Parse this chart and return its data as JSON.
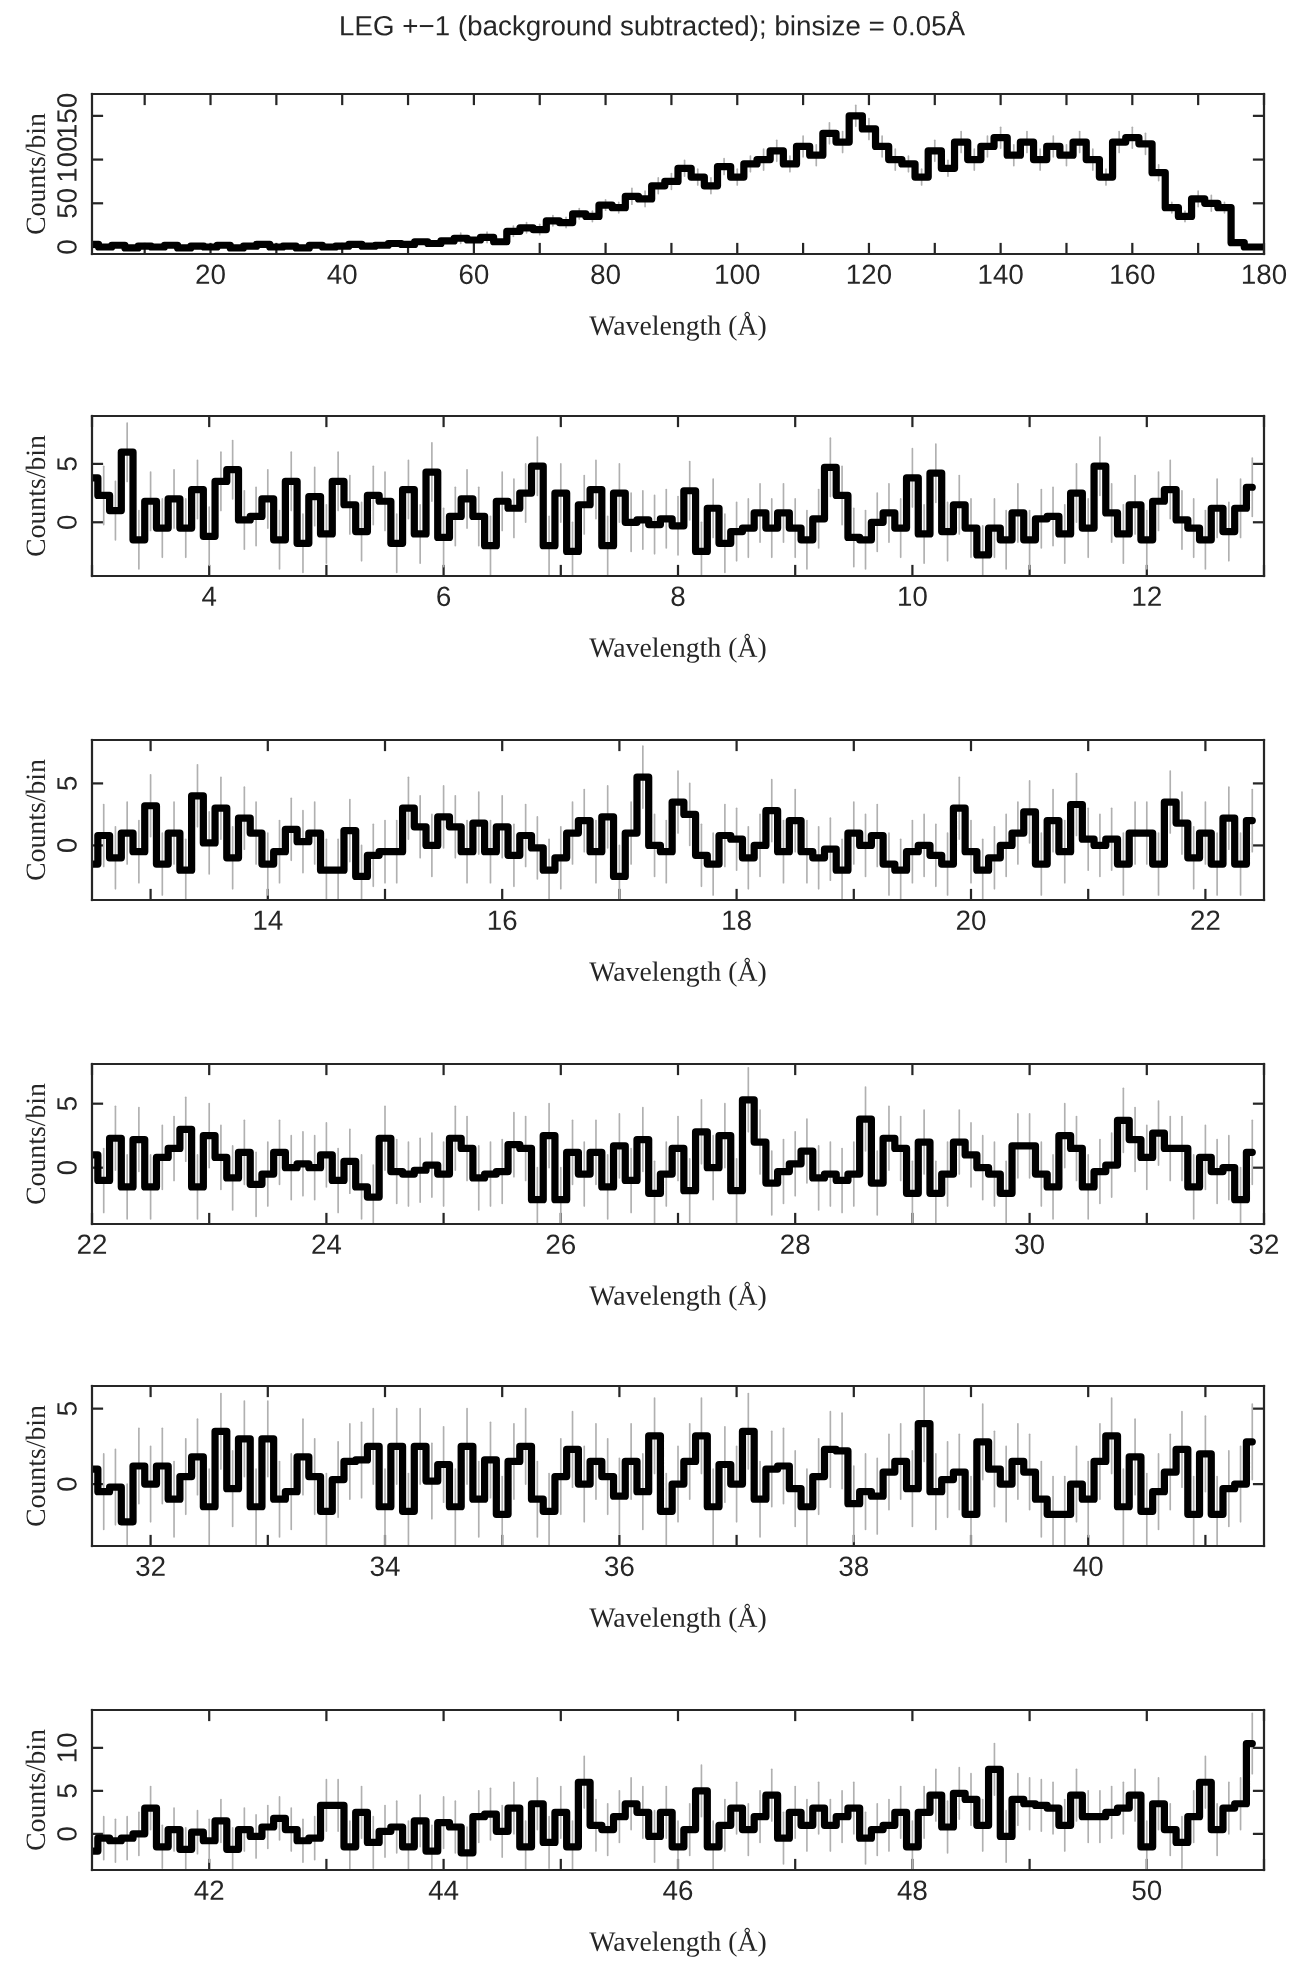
{
  "chart_data": [
    {
      "type": "step",
      "title": "LEG +−1 (background subtracted); binsize = 0.05Å",
      "xlabel": "Wavelength (Å)",
      "ylabel": "Counts/bin",
      "xlim": [
        2,
        180
      ],
      "ylim": [
        -8,
        175
      ],
      "yticks": [
        0,
        50,
        100,
        150
      ],
      "xticks": [
        {
          "value": 10,
          "label": null
        },
        20,
        {
          "value": 30,
          "label": null
        },
        40,
        {
          "value": 50,
          "label": null
        },
        60,
        {
          "value": 70,
          "label": null
        },
        80,
        {
          "value": 90,
          "label": null
        },
        100,
        {
          "value": 110,
          "label": null
        },
        120,
        {
          "value": 130,
          "label": null
        },
        140,
        {
          "value": 150,
          "label": null
        },
        160,
        {
          "value": 170,
          "label": null
        },
        180
      ],
      "series": [
        {
          "color": "#000000",
          "x": [
            2,
            4,
            6,
            8,
            10,
            12,
            14,
            16,
            18,
            20,
            22,
            24,
            26,
            28,
            30,
            32,
            34,
            36,
            38,
            40,
            42,
            44,
            46,
            48,
            50,
            52,
            54,
            56,
            58,
            60,
            62,
            64,
            66,
            68,
            70,
            72,
            74,
            76,
            78,
            80,
            82,
            84,
            86,
            88,
            90,
            92,
            94,
            96,
            98,
            100,
            102,
            104,
            106,
            108,
            110,
            112,
            114,
            116,
            118,
            120,
            122,
            124,
            126,
            128,
            130,
            132,
            134,
            136,
            138,
            140,
            142,
            144,
            146,
            148,
            150,
            152,
            154,
            156,
            158,
            160,
            162,
            164,
            166,
            168,
            170,
            172,
            174,
            176,
            178,
            180
          ],
          "values": [
            3,
            0,
            2,
            -1,
            1,
            0,
            2,
            -1,
            1,
            0,
            2,
            -1,
            1,
            3,
            0,
            1,
            -1,
            2,
            0,
            1,
            3,
            1,
            2,
            4,
            3,
            6,
            4,
            7,
            10,
            8,
            11,
            6,
            18,
            22,
            20,
            30,
            28,
            38,
            35,
            48,
            45,
            58,
            55,
            70,
            75,
            90,
            80,
            70,
            92,
            80,
            95,
            100,
            110,
            95,
            115,
            105,
            130,
            120,
            150,
            135,
            115,
            100,
            95,
            80,
            110,
            90,
            120,
            100,
            115,
            125,
            105,
            120,
            100,
            115,
            105,
            120,
            100,
            80,
            120,
            125,
            118,
            85,
            45,
            35,
            55,
            50,
            45,
            5,
            0,
            0
          ],
          "errors": [
            null,
            null,
            null,
            null,
            null,
            null,
            null,
            null,
            null,
            null,
            null,
            null,
            null,
            null,
            null,
            null,
            null,
            null,
            null,
            null,
            null,
            null,
            null,
            null,
            null,
            null,
            null,
            null,
            6,
            null,
            6,
            null,
            6,
            6,
            6,
            6,
            6,
            6,
            6,
            6,
            6,
            9,
            9,
            9,
            9,
            9,
            9,
            9,
            9,
            9,
            9,
            12,
            12,
            9,
            12,
            12,
            12,
            12,
            12,
            12,
            12,
            12,
            9,
            9,
            12,
            9,
            12,
            12,
            12,
            12,
            12,
            12,
            12,
            12,
            12,
            12,
            12,
            9,
            12,
            12,
            12,
            9,
            6,
            6,
            9,
            9,
            6,
            null,
            null,
            null
          ]
        }
      ]
    },
    {
      "type": "step",
      "xlabel": "Wavelength (Å)",
      "ylabel": "Counts/bin",
      "xlim": [
        3,
        13
      ],
      "ylim": [
        -4.6,
        9.1
      ],
      "yticks": [
        0,
        5
      ],
      "xticks": [
        {
          "value": 3,
          "label": null
        },
        4,
        {
          "value": 5,
          "label": null
        },
        6,
        {
          "value": 7,
          "label": null
        },
        8,
        {
          "value": 9,
          "label": null
        },
        10,
        {
          "value": 11,
          "label": null
        },
        12,
        {
          "value": 13,
          "label": null
        }
      ],
      "series": [
        {
          "color": "#000000",
          "x": [
            3.0,
            3.1,
            3.2,
            3.3,
            3.4,
            3.5,
            3.6,
            3.7,
            3.8,
            3.9,
            4.0,
            4.1,
            4.2,
            4.3,
            4.4,
            4.5,
            4.6,
            4.7,
            4.8,
            4.9,
            5.0,
            5.1,
            5.2,
            5.3,
            5.4,
            5.5,
            5.6,
            5.7,
            5.8,
            5.9,
            6.0,
            6.1,
            6.2,
            6.3,
            6.4,
            6.5,
            6.6,
            6.7,
            6.8,
            6.9,
            7.0,
            7.1,
            7.2,
            7.3,
            7.4,
            7.5,
            7.6,
            7.7,
            7.8,
            7.9,
            8.0,
            8.1,
            8.2,
            8.3,
            8.4,
            8.5,
            8.6,
            8.7,
            8.8,
            8.9,
            9.0,
            9.1,
            9.2,
            9.3,
            9.4,
            9.5,
            9.6,
            9.7,
            9.8,
            9.9,
            10.0,
            10.1,
            10.2,
            10.3,
            10.4,
            10.5,
            10.6,
            10.7,
            10.8,
            10.9,
            11.0,
            11.1,
            11.2,
            11.3,
            11.4,
            11.5,
            11.6,
            11.7,
            11.8,
            11.9,
            12.0,
            12.1,
            12.2,
            12.3,
            12.4,
            12.5,
            12.6,
            12.7,
            12.8,
            12.9
          ],
          "values": [
            3.8,
            2.3,
            1.0,
            6.0,
            -1.5,
            1.8,
            -0.5,
            2.0,
            -0.5,
            2.8,
            -1.2,
            3.5,
            4.5,
            0.2,
            0.5,
            2.0,
            -1.5,
            3.5,
            -1.8,
            2.2,
            -1.0,
            3.5,
            1.5,
            -0.8,
            2.3,
            1.8,
            -1.8,
            2.8,
            -1.0,
            4.3,
            -1.3,
            0.5,
            2.0,
            0.5,
            -2.0,
            1.8,
            1.2,
            2.5,
            4.8,
            -2.0,
            2.5,
            -2.5,
            1.5,
            2.8,
            -2.0,
            2.5,
            0.0,
            0.2,
            -0.2,
            0.3,
            -0.3,
            2.7,
            -2.5,
            1.2,
            -1.8,
            -0.8,
            -0.5,
            0.8,
            -0.5,
            0.8,
            -0.5,
            -1.5,
            0.3,
            4.7,
            2.3,
            -1.3,
            -1.5,
            0.0,
            0.8,
            -0.5,
            3.8,
            -1.0,
            4.2,
            -0.8,
            1.5,
            -0.5,
            -2.8,
            -0.5,
            -1.5,
            0.8,
            -1.5,
            0.3,
            0.5,
            -1.0,
            2.5,
            -0.5,
            4.8,
            0.8,
            -1.0,
            1.5,
            -1.5,
            1.8,
            2.8,
            0.2,
            -0.5,
            -1.5,
            1.2,
            -0.8,
            1.2,
            3.0
          ],
          "errors": [
            2.5,
            2.5,
            2.5,
            2.5,
            2.5,
            2.5,
            2.5,
            2.5,
            2.5,
            2.5,
            2.5,
            2.5,
            2.5,
            2.5,
            2.5,
            2.5,
            2.5,
            2.5,
            2.5,
            2.5,
            2.5,
            2.5,
            2.5,
            2.5,
            2.5,
            2.5,
            2.5,
            2.5,
            2.5,
            2.5,
            2.5,
            2.5,
            2.5,
            2.5,
            2.5,
            2.5,
            2.5,
            2.5,
            2.5,
            2.5,
            2.5,
            2.5,
            2.5,
            2.5,
            2.5,
            2.5,
            2.5,
            2.5,
            2.5,
            2.5,
            2.5,
            2.5,
            2.5,
            2.5,
            2.5,
            2.5,
            2.5,
            2.5,
            2.5,
            2.5,
            2.5,
            2.5,
            2.5,
            2.5,
            2.5,
            2.5,
            2.5,
            2.5,
            2.5,
            2.5,
            2.5,
            2.5,
            2.5,
            2.5,
            2.5,
            2.5,
            2.5,
            2.5,
            2.5,
            2.5,
            2.5,
            2.5,
            2.5,
            2.5,
            2.5,
            2.5,
            2.5,
            2.5,
            2.5,
            2.5,
            2.5,
            2.5,
            2.5,
            2.5,
            2.5,
            2.5,
            2.5,
            2.5,
            2.5,
            2.5
          ]
        }
      ]
    },
    {
      "type": "step",
      "xlabel": "Wavelength (Å)",
      "ylabel": "Counts/bin",
      "xlim": [
        12.5,
        22.5
      ],
      "ylim": [
        -4.4,
        8.5
      ],
      "yticks": [
        0,
        5
      ],
      "xticks": [
        {
          "value": 13,
          "label": null
        },
        14,
        {
          "value": 15,
          "label": null
        },
        16,
        {
          "value": 17,
          "label": null
        },
        18,
        {
          "value": 19,
          "label": null
        },
        20,
        {
          "value": 21,
          "label": null
        },
        22
      ],
      "series": [
        {
          "color": "#000000",
          "x": [
            12.5,
            12.6,
            12.7,
            12.8,
            12.9,
            13.0,
            13.1,
            13.2,
            13.3,
            13.4,
            13.5,
            13.6,
            13.7,
            13.8,
            13.9,
            14.0,
            14.1,
            14.2,
            14.3,
            14.4,
            14.5,
            14.6,
            14.7,
            14.8,
            14.9,
            15.0,
            15.1,
            15.2,
            15.3,
            15.4,
            15.5,
            15.6,
            15.7,
            15.8,
            15.9,
            16.0,
            16.1,
            16.2,
            16.3,
            16.4,
            16.5,
            16.6,
            16.7,
            16.8,
            16.9,
            17.0,
            17.1,
            17.2,
            17.3,
            17.4,
            17.5,
            17.6,
            17.7,
            17.8,
            17.9,
            18.0,
            18.1,
            18.2,
            18.3,
            18.4,
            18.5,
            18.6,
            18.7,
            18.8,
            18.9,
            19.0,
            19.1,
            19.2,
            19.3,
            19.4,
            19.5,
            19.6,
            19.7,
            19.8,
            19.9,
            20.0,
            20.1,
            20.2,
            20.3,
            20.4,
            20.5,
            20.6,
            20.7,
            20.8,
            20.9,
            21.0,
            21.1,
            21.2,
            21.3,
            21.4,
            21.5,
            21.6,
            21.7,
            21.8,
            21.9,
            22.0,
            22.1,
            22.2,
            22.3,
            22.4
          ],
          "values": [
            -1.5,
            0.8,
            -1.0,
            1.0,
            -0.5,
            3.2,
            -1.5,
            1.0,
            -2.0,
            4.0,
            0.2,
            3.0,
            -1.0,
            2.2,
            1.0,
            -1.5,
            -0.5,
            1.3,
            0.3,
            1.0,
            -2.0,
            -2.0,
            1.2,
            -2.5,
            -0.8,
            -0.5,
            -0.5,
            3.0,
            1.5,
            0.0,
            2.3,
            1.5,
            -0.5,
            1.8,
            -0.5,
            1.5,
            -0.8,
            0.8,
            -0.2,
            -2.0,
            -1.0,
            1.0,
            2.0,
            -0.5,
            2.3,
            -2.5,
            1.0,
            5.5,
            0.0,
            -0.5,
            3.5,
            2.5,
            -0.8,
            -1.5,
            0.8,
            0.5,
            -1.0,
            0.0,
            2.8,
            -0.5,
            2.0,
            -0.5,
            -1.0,
            -0.3,
            -2.0,
            1.0,
            0.0,
            0.8,
            -1.5,
            -2.0,
            -0.5,
            0.0,
            -0.8,
            -1.5,
            3.0,
            -0.5,
            -2.0,
            -1.0,
            0.0,
            1.0,
            2.7,
            -1.5,
            2.0,
            -0.5,
            3.3,
            0.5,
            0.0,
            0.5,
            -1.5,
            1.0,
            1.0,
            -1.5,
            3.5,
            1.8,
            -1.0,
            1.0,
            -1.5,
            2.2,
            -1.5,
            2.0
          ],
          "errors": [
            2.5,
            2.5,
            2.5,
            2.5,
            2.5,
            2.5,
            2.5,
            2.5,
            2.5,
            2.5,
            2.5,
            2.5,
            2.5,
            2.5,
            2.5,
            2.5,
            2.5,
            2.5,
            2.5,
            2.5,
            2.5,
            2.5,
            2.5,
            2.5,
            2.5,
            2.5,
            2.5,
            2.5,
            2.5,
            2.5,
            2.5,
            2.5,
            2.5,
            2.5,
            2.5,
            2.5,
            2.5,
            2.5,
            2.5,
            2.5,
            2.5,
            2.5,
            2.5,
            2.5,
            2.5,
            2.5,
            2.5,
            2.5,
            2.5,
            2.5,
            2.5,
            2.5,
            2.5,
            2.5,
            2.5,
            2.5,
            2.5,
            2.5,
            2.5,
            2.5,
            2.5,
            2.5,
            2.5,
            2.5,
            2.5,
            2.5,
            2.5,
            2.5,
            2.5,
            2.5,
            2.5,
            2.5,
            2.5,
            2.5,
            2.5,
            2.5,
            2.5,
            2.5,
            2.5,
            2.5,
            2.5,
            2.5,
            2.5,
            2.5,
            2.5,
            2.5,
            2.5,
            2.5,
            2.5,
            2.5,
            2.5,
            2.5,
            2.5,
            2.5,
            2.5,
            2.5,
            2.5,
            2.5,
            2.5,
            2.5
          ]
        }
      ]
    },
    {
      "type": "step",
      "xlabel": "Wavelength (Å)",
      "ylabel": "Counts/bin",
      "xlim": [
        22,
        32
      ],
      "ylim": [
        -4.4,
        8.1
      ],
      "yticks": [
        0,
        5
      ],
      "xticks": [
        22,
        {
          "value": 23,
          "label": null
        },
        24,
        {
          "value": 25,
          "label": null
        },
        26,
        {
          "value": 27,
          "label": null
        },
        28,
        {
          "value": 29,
          "label": null
        },
        30,
        {
          "value": 31,
          "label": null
        },
        32
      ],
      "series": [
        {
          "color": "#000000",
          "x": [
            22.0,
            22.1,
            22.2,
            22.3,
            22.4,
            22.5,
            22.6,
            22.7,
            22.8,
            22.9,
            23.0,
            23.1,
            23.2,
            23.3,
            23.4,
            23.5,
            23.6,
            23.7,
            23.8,
            23.9,
            24.0,
            24.1,
            24.2,
            24.3,
            24.4,
            24.5,
            24.6,
            24.7,
            24.8,
            24.9,
            25.0,
            25.1,
            25.2,
            25.3,
            25.4,
            25.5,
            25.6,
            25.7,
            25.8,
            25.9,
            26.0,
            26.1,
            26.2,
            26.3,
            26.4,
            26.5,
            26.6,
            26.7,
            26.8,
            26.9,
            27.0,
            27.1,
            27.2,
            27.3,
            27.4,
            27.5,
            27.6,
            27.7,
            27.8,
            27.9,
            28.0,
            28.1,
            28.2,
            28.3,
            28.4,
            28.5,
            28.6,
            28.7,
            28.8,
            28.9,
            29.0,
            29.1,
            29.2,
            29.3,
            29.4,
            29.5,
            29.6,
            29.7,
            29.8,
            29.9,
            30.0,
            30.1,
            30.2,
            30.3,
            30.4,
            30.5,
            30.6,
            30.7,
            30.8,
            30.9,
            31.0,
            31.1,
            31.2,
            31.3,
            31.4,
            31.5,
            31.6,
            31.7,
            31.8,
            31.9
          ],
          "values": [
            1.0,
            -1.0,
            2.3,
            -1.5,
            2.2,
            -1.5,
            0.8,
            1.5,
            3.0,
            -1.5,
            2.5,
            0.8,
            -0.8,
            1.2,
            -1.3,
            -0.5,
            1.2,
            0.0,
            0.3,
            0.0,
            1.0,
            -1.0,
            0.5,
            -1.5,
            -2.3,
            2.3,
            -0.3,
            -0.5,
            -0.2,
            0.2,
            -0.5,
            2.3,
            1.5,
            -0.8,
            -0.5,
            -0.3,
            1.8,
            1.5,
            -2.5,
            2.5,
            -2.5,
            1.2,
            -0.5,
            1.2,
            -1.5,
            1.7,
            -1.0,
            2.2,
            -2.0,
            -0.5,
            1.5,
            -1.8,
            2.8,
            0.0,
            2.5,
            -1.8,
            5.3,
            2.0,
            -1.2,
            -0.3,
            0.3,
            1.3,
            -0.8,
            -0.5,
            -1.0,
            -0.5,
            3.8,
            -1.2,
            2.3,
            1.5,
            -2.0,
            2.0,
            -2.0,
            -0.5,
            2.0,
            1.0,
            0.0,
            -0.5,
            -2.0,
            1.7,
            1.7,
            -0.5,
            -1.5,
            2.5,
            1.5,
            -1.5,
            -0.3,
            0.2,
            3.7,
            2.2,
            0.8,
            2.7,
            1.5,
            1.5,
            -1.5,
            0.8,
            -0.3,
            0.0,
            -2.5,
            1.2
          ],
          "errors": [
            2.5,
            2.5,
            2.5,
            2.5,
            2.5,
            2.5,
            2.5,
            2.5,
            2.5,
            2.5,
            2.5,
            2.5,
            2.5,
            2.5,
            2.5,
            2.5,
            2.5,
            2.5,
            2.5,
            2.5,
            2.5,
            2.5,
            2.5,
            2.5,
            2.5,
            2.5,
            2.5,
            2.5,
            2.5,
            2.5,
            2.5,
            2.5,
            2.5,
            2.5,
            2.5,
            2.5,
            2.5,
            2.5,
            2.5,
            2.5,
            2.5,
            2.5,
            2.5,
            2.5,
            2.5,
            2.5,
            2.5,
            2.5,
            2.5,
            2.5,
            2.5,
            2.5,
            2.5,
            2.5,
            2.5,
            2.5,
            2.5,
            2.5,
            2.5,
            2.5,
            2.5,
            2.5,
            2.5,
            2.5,
            2.5,
            2.5,
            2.5,
            2.5,
            2.5,
            2.5,
            2.5,
            2.5,
            2.5,
            2.5,
            2.5,
            2.5,
            2.5,
            2.5,
            2.5,
            2.5,
            2.5,
            2.5,
            2.5,
            2.5,
            2.5,
            2.5,
            2.5,
            2.5,
            2.5,
            2.5,
            2.5,
            2.5,
            2.5,
            2.5,
            2.5,
            2.5,
            2.5,
            2.5,
            2.5,
            2.5
          ]
        }
      ]
    },
    {
      "type": "step",
      "xlabel": "Wavelength (Å)",
      "ylabel": "Counts/bin",
      "xlim": [
        31.5,
        41.5
      ],
      "ylim": [
        -4.1,
        6.5
      ],
      "yticks": [
        0,
        5
      ],
      "xticks": [
        32,
        {
          "value": 33,
          "label": null
        },
        34,
        {
          "value": 35,
          "label": null
        },
        36,
        {
          "value": 37,
          "label": null
        },
        38,
        {
          "value": 39,
          "label": null
        },
        40,
        {
          "value": 41,
          "label": null
        }
      ],
      "series": [
        {
          "color": "#000000",
          "x": [
            31.5,
            31.6,
            31.7,
            31.8,
            31.9,
            32.0,
            32.1,
            32.2,
            32.3,
            32.4,
            32.5,
            32.6,
            32.7,
            32.8,
            32.9,
            33.0,
            33.1,
            33.2,
            33.3,
            33.4,
            33.5,
            33.6,
            33.7,
            33.8,
            33.9,
            34.0,
            34.1,
            34.2,
            34.3,
            34.4,
            34.5,
            34.6,
            34.7,
            34.8,
            34.9,
            35.0,
            35.1,
            35.2,
            35.3,
            35.4,
            35.5,
            35.6,
            35.7,
            35.8,
            35.9,
            36.0,
            36.1,
            36.2,
            36.3,
            36.4,
            36.5,
            36.6,
            36.7,
            36.8,
            36.9,
            37.0,
            37.1,
            37.2,
            37.3,
            37.4,
            37.5,
            37.6,
            37.7,
            37.8,
            37.9,
            38.0,
            38.1,
            38.2,
            38.3,
            38.4,
            38.5,
            38.6,
            38.7,
            38.8,
            38.9,
            39.0,
            39.1,
            39.2,
            39.3,
            39.4,
            39.5,
            39.6,
            39.7,
            39.8,
            39.9,
            40.0,
            40.1,
            40.2,
            40.3,
            40.4,
            40.5,
            40.6,
            40.7,
            40.8,
            40.9,
            41.0,
            41.1,
            41.2,
            41.3,
            41.4
          ],
          "values": [
            1.0,
            -0.5,
            -0.2,
            -2.5,
            1.2,
            0.0,
            1.2,
            -1.0,
            0.5,
            1.8,
            -1.5,
            3.5,
            -0.3,
            3.0,
            -1.5,
            3.0,
            -1.0,
            -0.5,
            1.8,
            0.5,
            -1.8,
            0.3,
            1.5,
            1.6,
            2.5,
            -1.5,
            2.5,
            -1.8,
            2.5,
            0.2,
            1.3,
            -1.5,
            2.5,
            -1.0,
            1.6,
            -2.0,
            1.5,
            2.5,
            -1.0,
            -1.8,
            0.5,
            2.3,
            0.0,
            1.5,
            0.5,
            -0.8,
            1.5,
            -0.5,
            3.2,
            -1.8,
            0.0,
            1.5,
            3.2,
            -1.5,
            1.3,
            0.0,
            3.5,
            -1.0,
            1.0,
            1.2,
            -0.3,
            -1.5,
            0.5,
            2.3,
            2.2,
            -1.3,
            -0.5,
            -0.8,
            0.8,
            1.5,
            -0.3,
            4.0,
            -0.5,
            0.3,
            0.8,
            -2.0,
            2.8,
            1.0,
            0.0,
            1.5,
            0.8,
            -1.0,
            -2.0,
            -2.0,
            0.0,
            -1.0,
            1.5,
            3.2,
            -1.5,
            1.8,
            -1.8,
            -0.5,
            0.8,
            2.3,
            -2.0,
            2.0,
            -2.0,
            -0.3,
            0.0,
            2.8
          ],
          "errors": [
            2.5,
            2.5,
            2.5,
            2.5,
            2.5,
            2.5,
            2.5,
            2.5,
            2.5,
            2.5,
            2.5,
            2.5,
            2.5,
            2.5,
            2.5,
            2.5,
            2.5,
            2.5,
            2.5,
            2.5,
            2.5,
            2.5,
            2.5,
            2.5,
            2.5,
            2.5,
            2.5,
            2.5,
            2.5,
            2.5,
            2.5,
            2.5,
            2.5,
            2.5,
            2.5,
            2.5,
            2.5,
            2.5,
            2.5,
            2.5,
            2.5,
            2.5,
            2.5,
            2.5,
            2.5,
            2.5,
            2.5,
            2.5,
            2.5,
            2.5,
            2.5,
            2.5,
            2.5,
            2.5,
            2.5,
            2.5,
            2.5,
            2.5,
            2.5,
            2.5,
            2.5,
            2.5,
            2.5,
            2.5,
            2.5,
            2.5,
            2.5,
            2.5,
            2.5,
            2.5,
            2.5,
            2.5,
            2.5,
            2.5,
            2.5,
            2.5,
            2.5,
            2.5,
            2.5,
            2.5,
            2.5,
            2.5,
            2.5,
            2.5,
            2.5,
            2.5,
            2.5,
            2.5,
            2.5,
            2.5,
            2.5,
            2.5,
            2.5,
            2.5,
            2.5,
            2.5,
            2.5,
            2.5,
            2.5,
            2.5
          ]
        }
      ]
    },
    {
      "type": "step",
      "xlabel": "Wavelength (Å)",
      "ylabel": "Counts/bin",
      "xlim": [
        41,
        51
      ],
      "ylim": [
        -4.2,
        14.4
      ],
      "yticks": [
        0,
        5,
        10
      ],
      "xticks": [
        42,
        {
          "value": 43,
          "label": null
        },
        44,
        {
          "value": 45,
          "label": null
        },
        46,
        {
          "value": 47,
          "label": null
        },
        48,
        {
          "value": 49,
          "label": null
        },
        50,
        {
          "value": 51,
          "label": null
        }
      ],
      "series": [
        {
          "color": "#000000",
          "x": [
            41.0,
            41.1,
            41.2,
            41.3,
            41.4,
            41.5,
            41.6,
            41.7,
            41.8,
            41.9,
            42.0,
            42.1,
            42.2,
            42.3,
            42.4,
            42.5,
            42.6,
            42.7,
            42.8,
            42.9,
            43.0,
            43.1,
            43.2,
            43.3,
            43.4,
            43.5,
            43.6,
            43.7,
            43.8,
            43.9,
            44.0,
            44.1,
            44.2,
            44.3,
            44.4,
            44.5,
            44.6,
            44.7,
            44.8,
            44.9,
            45.0,
            45.1,
            45.2,
            45.3,
            45.4,
            45.5,
            45.6,
            45.7,
            45.8,
            45.9,
            46.0,
            46.1,
            46.2,
            46.3,
            46.4,
            46.5,
            46.6,
            46.7,
            46.8,
            46.9,
            47.0,
            47.1,
            47.2,
            47.3,
            47.4,
            47.5,
            47.6,
            47.7,
            47.8,
            47.9,
            48.0,
            48.1,
            48.2,
            48.3,
            48.4,
            48.5,
            48.6,
            48.7,
            48.8,
            48.9,
            49.0,
            49.1,
            49.2,
            49.3,
            49.4,
            49.5,
            49.6,
            49.7,
            49.8,
            49.9,
            50.0,
            50.1,
            50.2,
            50.3,
            50.4,
            50.5,
            50.6,
            50.7,
            50.8,
            50.9
          ],
          "values": [
            -2.0,
            -0.5,
            -0.8,
            -0.5,
            0.0,
            3.0,
            -1.5,
            0.5,
            -1.8,
            0.2,
            -0.8,
            1.5,
            -1.8,
            0.5,
            -0.3,
            0.8,
            1.8,
            0.5,
            -0.8,
            -0.5,
            3.3,
            3.3,
            -1.5,
            2.5,
            -1.0,
            0.3,
            0.8,
            -1.5,
            1.5,
            -2.0,
            1.3,
            0.8,
            -2.2,
            2.0,
            2.3,
            0.3,
            3.0,
            -1.5,
            3.5,
            -1.0,
            2.5,
            -1.5,
            6.0,
            1.0,
            0.5,
            2.0,
            3.5,
            2.5,
            -0.3,
            2.5,
            -1.5,
            0.5,
            5.0,
            -1.5,
            1.0,
            3.0,
            0.5,
            2.0,
            4.5,
            -0.5,
            2.5,
            1.0,
            3.0,
            1.0,
            2.0,
            3.0,
            -0.5,
            0.5,
            1.0,
            2.5,
            -1.5,
            2.5,
            4.5,
            0.8,
            4.7,
            4.0,
            1.0,
            7.5,
            -0.3,
            4.0,
            3.5,
            3.3,
            3.0,
            1.0,
            4.5,
            2.0,
            2.0,
            2.5,
            3.0,
            4.5,
            -1.5,
            3.5,
            0.5,
            -1.0,
            2.0,
            6.0,
            0.5,
            3.0,
            3.5,
            10.5
          ],
          "errors": [
            2.5,
            2.5,
            2.5,
            2.5,
            2.5,
            2.5,
            2.5,
            2.5,
            2.5,
            2.5,
            2.5,
            2.5,
            2.5,
            2.5,
            2.5,
            2.5,
            2.5,
            2.5,
            2.5,
            2.5,
            3,
            3,
            3,
            3,
            3,
            3,
            3,
            3,
            3,
            3,
            3,
            3,
            3,
            3,
            3,
            3,
            3,
            3,
            3,
            3,
            3,
            3,
            3,
            3,
            3,
            3,
            3,
            3,
            3,
            3,
            3,
            3,
            3,
            3,
            3,
            3,
            3,
            3,
            3,
            3,
            3,
            3,
            3,
            3,
            3,
            3,
            3,
            3,
            3,
            3,
            3,
            3,
            3,
            3,
            3,
            3,
            3,
            3,
            3,
            3,
            3,
            3,
            3,
            3,
            3,
            3,
            3,
            3,
            3,
            3,
            3,
            3,
            3,
            3,
            3,
            3,
            3,
            3,
            3,
            3.5
          ]
        }
      ]
    }
  ]
}
